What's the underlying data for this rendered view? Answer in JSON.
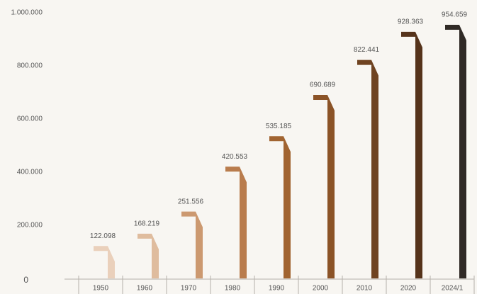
{
  "chart_data": {
    "type": "bar",
    "categories": [
      "1950",
      "1960",
      "1970",
      "1980",
      "1990",
      "2000",
      "2010",
      "2020",
      "2024/1"
    ],
    "values": [
      122098,
      168219,
      251556,
      420553,
      535185,
      690689,
      822441,
      928363,
      954659
    ],
    "value_labels": [
      "122.098",
      "168.219",
      "251.556",
      "420.553",
      "535.185",
      "690.689",
      "822.441",
      "928.363",
      "954.659"
    ],
    "colors": [
      "#ead0bb",
      "#dfbc9e",
      "#cc9970",
      "#b97c4d",
      "#a16431",
      "#8b5327",
      "#6f4321",
      "#55331b",
      "#302a26"
    ],
    "ylim": [
      0,
      1000000
    ],
    "yticks": [
      0,
      {
        "value": 200000,
        "label": "200.000"
      },
      {
        "value": 400000,
        "label": "400.000"
      },
      {
        "value": 600000,
        "label": "600.000"
      },
      {
        "value": 800000,
        "label": "800.000"
      },
      {
        "value": 1000000,
        "label": "1.000.000"
      }
    ],
    "grid": false
  }
}
